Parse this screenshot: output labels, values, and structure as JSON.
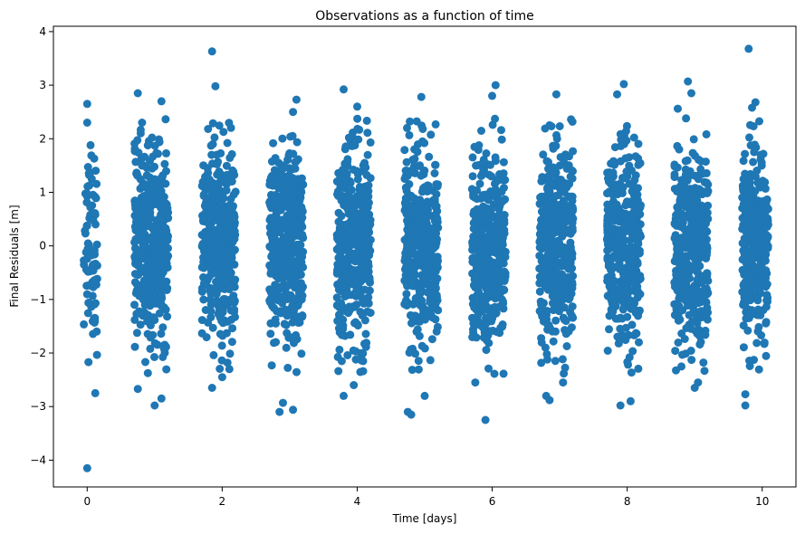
{
  "chart_data": {
    "type": "scatter",
    "title": "Observations as a function of time",
    "xlabel": "Time [days]",
    "ylabel": "Final Residuals [m]",
    "xlim": [
      -0.5,
      10.5
    ],
    "ylim": [
      -4.5,
      4.1
    ],
    "xticks": [
      0,
      2,
      4,
      6,
      8,
      10
    ],
    "yticks": [
      -4,
      -3,
      -2,
      -1,
      0,
      1,
      2,
      3,
      4
    ],
    "grid": false,
    "legend": "none",
    "marker_color": "#1f77b4",
    "clusters": [
      {
        "center": 0.05,
        "halfwidth": 0.1,
        "count": 80
      },
      {
        "center": 0.95,
        "halfwidth": 0.25,
        "count": 400
      },
      {
        "center": 1.95,
        "halfwidth": 0.25,
        "count": 400
      },
      {
        "center": 2.95,
        "halfwidth": 0.25,
        "count": 400
      },
      {
        "center": 3.95,
        "halfwidth": 0.25,
        "count": 400
      },
      {
        "center": 4.95,
        "halfwidth": 0.25,
        "count": 400
      },
      {
        "center": 5.95,
        "halfwidth": 0.25,
        "count": 400
      },
      {
        "center": 6.95,
        "halfwidth": 0.25,
        "count": 400
      },
      {
        "center": 7.95,
        "halfwidth": 0.25,
        "count": 400
      },
      {
        "center": 8.95,
        "halfwidth": 0.25,
        "count": 400
      },
      {
        "center": 9.9,
        "halfwidth": 0.2,
        "count": 320
      }
    ],
    "points": [
      [
        0.0,
        -4.15
      ],
      [
        0.0,
        2.65
      ],
      [
        0.0,
        2.3
      ],
      [
        0.05,
        1.88
      ],
      [
        0.12,
        -2.75
      ],
      [
        0.75,
        2.85
      ],
      [
        0.75,
        -2.67
      ],
      [
        1.0,
        -2.98
      ],
      [
        1.1,
        -2.85
      ],
      [
        1.1,
        2.7
      ],
      [
        1.85,
        3.63
      ],
      [
        1.9,
        2.98
      ],
      [
        1.85,
        -2.65
      ],
      [
        2.0,
        -2.45
      ],
      [
        2.85,
        -3.1
      ],
      [
        2.9,
        -2.93
      ],
      [
        3.05,
        -3.06
      ],
      [
        3.1,
        2.73
      ],
      [
        3.05,
        2.5
      ],
      [
        3.8,
        2.92
      ],
      [
        3.8,
        -2.8
      ],
      [
        3.95,
        -2.6
      ],
      [
        4.0,
        2.6
      ],
      [
        4.75,
        -3.1
      ],
      [
        4.8,
        -3.15
      ],
      [
        4.95,
        2.78
      ],
      [
        5.0,
        -2.8
      ],
      [
        5.9,
        -3.25
      ],
      [
        6.05,
        3.0
      ],
      [
        6.0,
        2.8
      ],
      [
        5.75,
        -2.55
      ],
      [
        6.8,
        -2.8
      ],
      [
        6.85,
        -2.88
      ],
      [
        6.95,
        2.83
      ],
      [
        7.05,
        -2.55
      ],
      [
        7.85,
        2.83
      ],
      [
        7.95,
        3.02
      ],
      [
        7.9,
        -2.98
      ],
      [
        8.05,
        -2.9
      ],
      [
        8.75,
        2.56
      ],
      [
        8.9,
        3.07
      ],
      [
        8.95,
        2.85
      ],
      [
        9.0,
        -2.65
      ],
      [
        9.05,
        -2.55
      ],
      [
        9.8,
        3.68
      ],
      [
        9.75,
        -2.98
      ],
      [
        9.75,
        -2.77
      ],
      [
        9.85,
        2.58
      ],
      [
        9.9,
        2.68
      ]
    ]
  }
}
